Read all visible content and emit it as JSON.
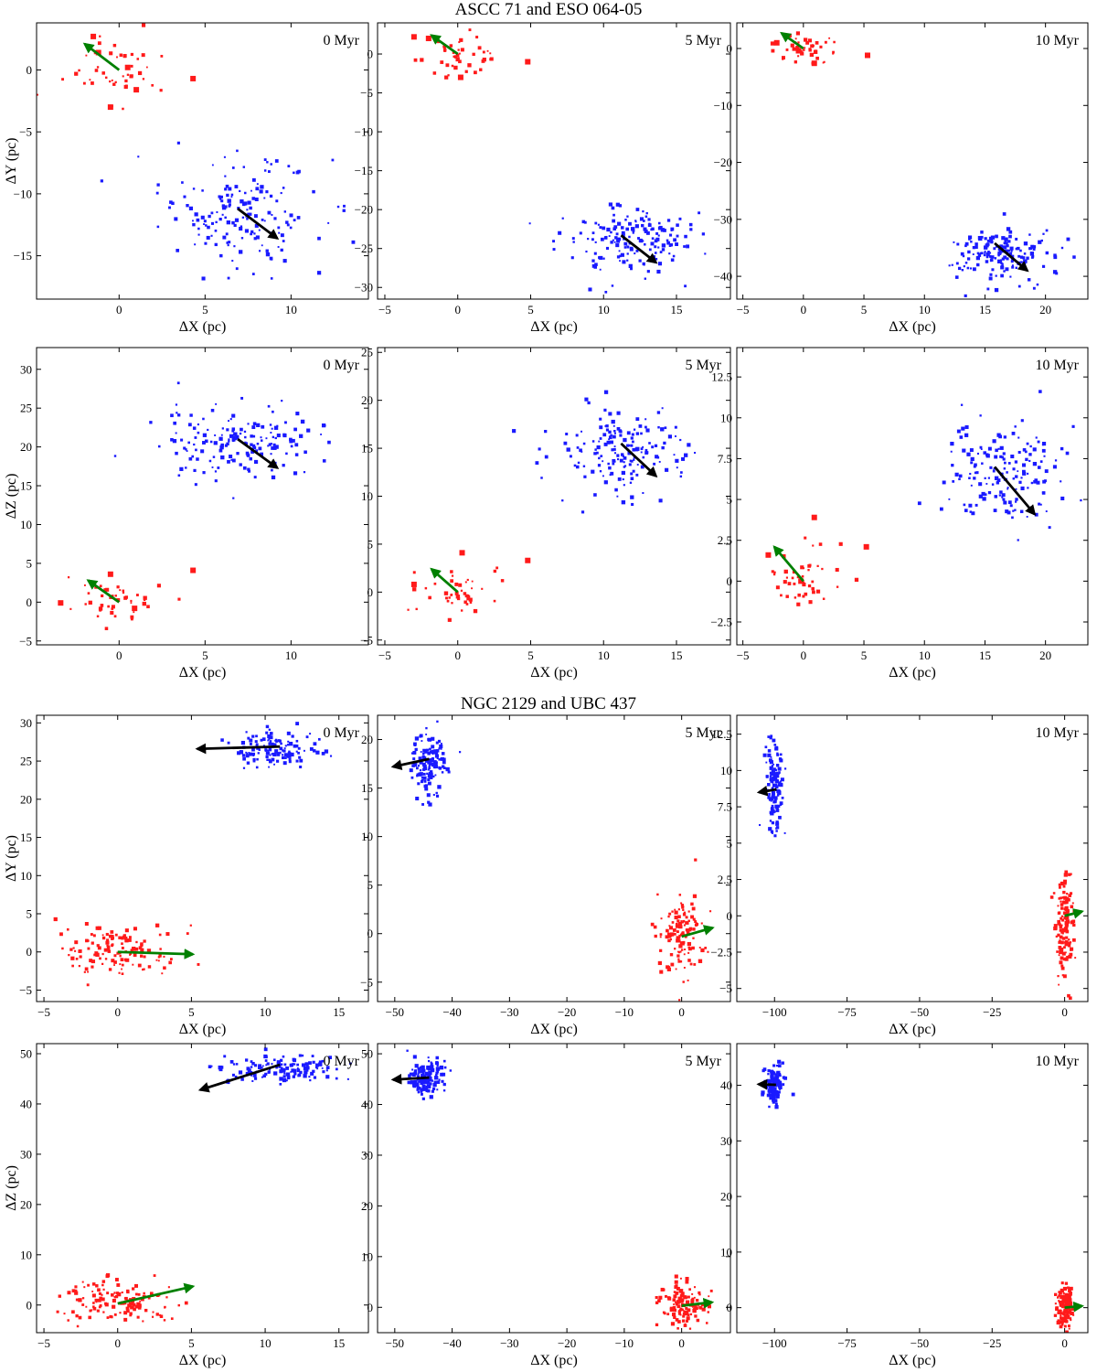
{
  "sections": [
    {
      "title": "ASCC 71 and ESO 064-05"
    },
    {
      "title": "NGC 2129 and UBC 437"
    }
  ],
  "colors": {
    "cluster_a": "#ff1a1a",
    "cluster_b": "#1a1aff",
    "arrow_a": "#008000",
    "arrow_b": "#000000"
  },
  "chart_data": [
    {
      "type": "scatter",
      "id": "a_xy_0",
      "time_label": "0 Myr",
      "xlabel": "ΔX (pc)",
      "ylabel": "ΔY (pc)",
      "xlim": [
        -4.8,
        14.5
      ],
      "ylim": [
        -18.5,
        3.8
      ],
      "xticks": [
        0,
        5,
        10
      ],
      "yticks": [
        0,
        -5,
        -10,
        -15
      ],
      "red": {
        "center": [
          0,
          0
        ],
        "sx": 1.4,
        "sy": 1.3,
        "n": 45,
        "big": [
          [
            -1.5,
            2.7
          ],
          [
            -1.2,
            1.4
          ],
          [
            0.5,
            0.2
          ],
          [
            1.0,
            -1.6
          ],
          [
            -0.5,
            -3.0
          ],
          [
            4.3,
            -0.7
          ]
        ]
      },
      "blue": {
        "center": [
          7,
          -11.5
        ],
        "sx": 2.3,
        "sy": 2.2,
        "n": 170,
        "big": []
      },
      "arrows": [
        {
          "color": "green",
          "from": [
            0,
            0
          ],
          "to": [
            -2,
            2.1
          ]
        },
        {
          "color": "black",
          "from": [
            6.9,
            -11.2
          ],
          "to": [
            9.2,
            -13.6
          ]
        }
      ]
    },
    {
      "type": "scatter",
      "id": "a_xy_5",
      "time_label": "5 Myr",
      "xlabel": "ΔX (pc)",
      "ylabel": "",
      "xlim": [
        -5.5,
        18.7
      ],
      "ylim": [
        -31.5,
        4
      ],
      "xticks": [
        -5,
        0,
        5,
        10,
        15
      ],
      "yticks": [
        0,
        -5,
        -10,
        -15,
        -20,
        -25,
        -30
      ],
      "red": {
        "center": [
          0,
          0
        ],
        "sx": 1.4,
        "sy": 1.3,
        "n": 45,
        "big": [
          [
            -3,
            2.2
          ],
          [
            -2.0,
            2.0
          ],
          [
            0.2,
            -3.0
          ],
          [
            4.8,
            -1.0
          ]
        ]
      },
      "blue": {
        "center": [
          11.5,
          -24
        ],
        "sx": 2.3,
        "sy": 2.2,
        "n": 170,
        "big": []
      },
      "arrows": [
        {
          "color": "green",
          "from": [
            0,
            0
          ],
          "to": [
            -1.8,
            2.4
          ]
        },
        {
          "color": "black",
          "from": [
            11.2,
            -23.3
          ],
          "to": [
            13.6,
            -26.8
          ]
        }
      ]
    },
    {
      "type": "scatter",
      "id": "a_xy_10",
      "time_label": "10 Myr",
      "xlabel": "ΔX (pc)",
      "ylabel": "",
      "xlim": [
        -5.5,
        23.5
      ],
      "ylim": [
        -44,
        4.5
      ],
      "xticks": [
        -5,
        0,
        5,
        10,
        15,
        20
      ],
      "yticks": [
        0,
        -10,
        -20,
        -30,
        -40
      ],
      "red": {
        "center": [
          0,
          0
        ],
        "sx": 1.4,
        "sy": 1.3,
        "n": 45,
        "big": [
          [
            -2.2,
            1.0
          ],
          [
            -0.4,
            -0.4
          ],
          [
            0.9,
            -2.6
          ],
          [
            5.3,
            -1.2
          ]
        ]
      },
      "blue": {
        "center": [
          16,
          -36
        ],
        "sx": 2.3,
        "sy": 2.2,
        "n": 170,
        "big": []
      },
      "arrows": [
        {
          "color": "green",
          "from": [
            0,
            0
          ],
          "to": [
            -1.8,
            2.7
          ]
        },
        {
          "color": "black",
          "from": [
            15.8,
            -34.2
          ],
          "to": [
            18.5,
            -39
          ]
        }
      ]
    },
    {
      "type": "scatter",
      "id": "a_xz_0",
      "time_label": "0 Myr",
      "xlabel": "ΔX (pc)",
      "ylabel": "ΔZ (pc)",
      "xlim": [
        -4.8,
        14.5
      ],
      "ylim": [
        -5.5,
        32.8
      ],
      "xticks": [
        0,
        5,
        10
      ],
      "yticks": [
        -5,
        0,
        5,
        10,
        15,
        20,
        25,
        30
      ],
      "red": {
        "center": [
          0,
          0
        ],
        "sx": 1.4,
        "sy": 1.3,
        "n": 45,
        "big": [
          [
            -3.4,
            -0.1
          ],
          [
            -0.5,
            3.6
          ],
          [
            0.9,
            -0.8
          ],
          [
            4.3,
            4.1
          ]
        ]
      },
      "blue": {
        "center": [
          7,
          20.5
        ],
        "sx": 2.3,
        "sy": 2.2,
        "n": 170,
        "big": []
      },
      "arrows": [
        {
          "color": "green",
          "from": [
            0,
            0
          ],
          "to": [
            -1.8,
            2.8
          ]
        },
        {
          "color": "black",
          "from": [
            6.9,
            21
          ],
          "to": [
            9.2,
            17.3
          ]
        }
      ]
    },
    {
      "type": "scatter",
      "id": "a_xz_5",
      "time_label": "5 Myr",
      "xlabel": "ΔX (pc)",
      "ylabel": "",
      "xlim": [
        -5.5,
        18.7
      ],
      "ylim": [
        -5.5,
        25.5
      ],
      "xticks": [
        -5,
        0,
        5,
        10,
        15
      ],
      "yticks": [
        -5,
        0,
        5,
        10,
        15,
        20,
        25
      ],
      "red": {
        "center": [
          0,
          0
        ],
        "sx": 1.4,
        "sy": 1.3,
        "n": 45,
        "big": [
          [
            -3,
            0.8
          ],
          [
            0.3,
            4.1
          ],
          [
            4.8,
            3.3
          ]
        ]
      },
      "blue": {
        "center": [
          11.5,
          14.8
        ],
        "sx": 2.3,
        "sy": 2.2,
        "n": 170,
        "big": []
      },
      "arrows": [
        {
          "color": "green",
          "from": [
            0,
            0
          ],
          "to": [
            -1.8,
            2.4
          ]
        },
        {
          "color": "black",
          "from": [
            11.2,
            15.5
          ],
          "to": [
            13.6,
            12.1
          ]
        }
      ]
    },
    {
      "type": "scatter",
      "id": "a_xz_10",
      "time_label": "10 Myr",
      "xlabel": "ΔX (pc)",
      "ylabel": "",
      "xlim": [
        -5.5,
        23.5
      ],
      "ylim": [
        -3.9,
        14.3
      ],
      "xticks": [
        -5,
        0,
        5,
        10,
        15,
        20
      ],
      "yticks": [
        -2.5,
        0,
        2.5,
        5.0,
        7.5,
        10.0,
        12.5
      ],
      "red": {
        "center": [
          0,
          0
        ],
        "sx": 1.4,
        "sy": 1.3,
        "n": 45,
        "big": [
          [
            0.9,
            3.9
          ],
          [
            5.2,
            2.1
          ],
          [
            -0.2,
            0.0
          ],
          [
            -2.9,
            1.6
          ]
        ]
      },
      "blue": {
        "center": [
          16.5,
          6.5
        ],
        "sx": 2.3,
        "sy": 1.5,
        "n": 170,
        "big": []
      },
      "arrows": [
        {
          "color": "green",
          "from": [
            0,
            0
          ],
          "to": [
            -2.4,
            2.1
          ]
        },
        {
          "color": "black",
          "from": [
            15.8,
            7
          ],
          "to": [
            19.1,
            4.1
          ]
        }
      ]
    },
    {
      "type": "scatter",
      "id": "b_xy_0",
      "time_label": "0 Myr",
      "xlabel": "ΔX (pc)",
      "ylabel": "ΔY (pc)",
      "xlim": [
        -5.5,
        17
      ],
      "ylim": [
        -6.5,
        31
      ],
      "xticks": [
        -5,
        0,
        5,
        10,
        15
      ],
      "yticks": [
        -5,
        0,
        5,
        10,
        15,
        20,
        25,
        30
      ],
      "red": {
        "center": [
          0,
          0
        ],
        "sx": 2.0,
        "sy": 2.0,
        "n": 130,
        "big": []
      },
      "blue": {
        "center": [
          10.8,
          26.5
        ],
        "sx": 1.4,
        "sy": 1.2,
        "n": 130,
        "big": []
      },
      "arrows": [
        {
          "color": "green",
          "from": [
            0,
            0
          ],
          "to": [
            5.1,
            -0.3
          ]
        },
        {
          "color": "black",
          "from": [
            11,
            26.9
          ],
          "to": [
            5.4,
            26.6
          ]
        }
      ]
    },
    {
      "type": "scatter",
      "id": "b_xy_5",
      "time_label": "5 Myr",
      "xlabel": "ΔX (pc)",
      "ylabel": "",
      "xlim": [
        -53,
        8.5
      ],
      "ylim": [
        -7,
        22.5
      ],
      "xticks": [
        -50,
        -40,
        -30,
        -20,
        -10,
        0
      ],
      "yticks": [
        -5,
        0,
        5,
        10,
        15,
        20
      ],
      "red": {
        "center": [
          0,
          0
        ],
        "sx": 2.0,
        "sy": 2.3,
        "n": 130,
        "big": []
      },
      "blue": {
        "center": [
          -44,
          17.5
        ],
        "sx": 1.4,
        "sy": 1.5,
        "n": 130,
        "big": []
      },
      "arrows": [
        {
          "color": "green",
          "from": [
            0,
            -0.3
          ],
          "to": [
            5.4,
            0.6
          ]
        },
        {
          "color": "black",
          "from": [
            -44,
            18
          ],
          "to": [
            -50.3,
            17.2
          ]
        }
      ]
    },
    {
      "type": "scatter",
      "id": "b_xy_10",
      "time_label": "10 Myr",
      "xlabel": "ΔX (pc)",
      "ylabel": "",
      "xlim": [
        -113,
        8
      ],
      "ylim": [
        -5.9,
        13.8
      ],
      "xticks": [
        -100,
        -75,
        -50,
        -25,
        0
      ],
      "yticks": [
        -5.0,
        -2.5,
        0.0,
        2.5,
        5.0,
        7.5,
        10.0,
        12.5
      ],
      "red": {
        "center": [
          0,
          -0.5
        ],
        "sx": 1.5,
        "sy": 2.0,
        "n": 130,
        "big": []
      },
      "blue": {
        "center": [
          -100,
          8.8
        ],
        "sx": 1.5,
        "sy": 1.5,
        "n": 130,
        "big": []
      },
      "arrows": [
        {
          "color": "green",
          "from": [
            0,
            0
          ],
          "to": [
            6,
            0.3
          ]
        },
        {
          "color": "black",
          "from": [
            -99.3,
            8.7
          ],
          "to": [
            -105.4,
            8.5
          ]
        }
      ]
    },
    {
      "type": "scatter",
      "id": "b_xz_0",
      "time_label": "0 Myr",
      "xlabel": "ΔX (pc)",
      "ylabel": "ΔZ (pc)",
      "xlim": [
        -5.5,
        17
      ],
      "ylim": [
        -5.5,
        52
      ],
      "xticks": [
        -5,
        0,
        5,
        10,
        15
      ],
      "yticks": [
        0,
        10,
        20,
        30,
        40,
        50
      ],
      "red": {
        "center": [
          0,
          0.5
        ],
        "sx": 2.0,
        "sy": 2.0,
        "n": 130,
        "big": []
      },
      "blue": {
        "center": [
          11,
          47
        ],
        "sx": 2.0,
        "sy": 1.5,
        "n": 130,
        "big": []
      },
      "arrows": [
        {
          "color": "green",
          "from": [
            0,
            0.3
          ],
          "to": [
            5.1,
            3.7
          ]
        },
        {
          "color": "black",
          "from": [
            11,
            47.8
          ],
          "to": [
            5.6,
            42.8
          ]
        }
      ]
    },
    {
      "type": "scatter",
      "id": "b_xz_5",
      "time_label": "5 Myr",
      "xlabel": "ΔX (pc)",
      "ylabel": "",
      "xlim": [
        -53,
        8.5
      ],
      "ylim": [
        -5,
        52
      ],
      "xticks": [
        -50,
        -40,
        -30,
        -20,
        -10,
        0
      ],
      "yticks": [
        0,
        10,
        20,
        30,
        40,
        50
      ],
      "red": {
        "center": [
          0.5,
          0.5
        ],
        "sx": 2.0,
        "sy": 2.0,
        "n": 130,
        "big": []
      },
      "blue": {
        "center": [
          -44.5,
          45.5
        ],
        "sx": 1.4,
        "sy": 1.6,
        "n": 130,
        "big": []
      },
      "arrows": [
        {
          "color": "green",
          "from": [
            0,
            0.3
          ],
          "to": [
            5.3,
            1.0
          ]
        },
        {
          "color": "black",
          "from": [
            -44,
            45.3
          ],
          "to": [
            -50.3,
            44.9
          ]
        }
      ]
    },
    {
      "type": "scatter",
      "id": "b_xz_10",
      "time_label": "10 Myr",
      "xlabel": "ΔX (pc)",
      "ylabel": "",
      "xlim": [
        -113,
        8
      ],
      "ylim": [
        -4.5,
        47.5
      ],
      "xticks": [
        -100,
        -75,
        -50,
        -25,
        0
      ],
      "yticks": [
        0,
        10,
        20,
        30,
        40
      ],
      "red": {
        "center": [
          0,
          0
        ],
        "sx": 1.5,
        "sy": 1.8,
        "n": 130,
        "big": []
      },
      "blue": {
        "center": [
          -100,
          40
        ],
        "sx": 1.5,
        "sy": 1.8,
        "n": 130,
        "big": []
      },
      "arrows": [
        {
          "color": "green",
          "from": [
            0,
            0
          ],
          "to": [
            6,
            0.3
          ]
        },
        {
          "color": "black",
          "from": [
            -99.5,
            40.1
          ],
          "to": [
            -105.5,
            40.2
          ]
        }
      ]
    }
  ]
}
